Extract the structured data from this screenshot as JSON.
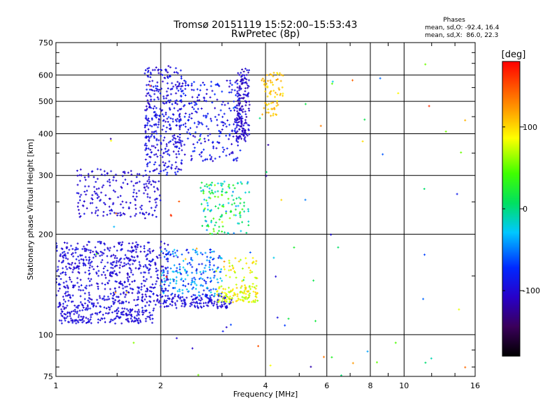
{
  "chart_data": {
    "type": "scatter",
    "title": "Tromsø 20151119 15:52:00–15:53:43",
    "subtitle": "RwPretec (8p)",
    "xlabel": "Frequency [MHz]",
    "ylabel": "Stationary phase Virtual Height [km]",
    "x_scale": "log",
    "y_scale": "log",
    "xlim": [
      1,
      16
    ],
    "ylim": [
      75,
      750
    ],
    "x_ticks": [
      1,
      2,
      4,
      6,
      8,
      10,
      16
    ],
    "y_ticks": [
      75,
      100,
      200,
      300,
      400,
      500,
      600,
      750
    ],
    "grid": true,
    "phases_box": {
      "title": "Phases",
      "line_o": "mean, sd,O: -92.4, 16.4",
      "line_x": "mean, sd,X:  86.0, 22.3"
    },
    "colorbar": {
      "label": "[deg]",
      "ticks": [
        100,
        0,
        -100
      ],
      "range": [
        -180,
        180
      ]
    },
    "clusters": [
      {
        "freq": [
          1.02,
          1.9
        ],
        "height": [
          108,
          118
        ],
        "phase": [
          -105,
          -90
        ],
        "count": 160
      },
      {
        "freq": [
          1.0,
          2.1
        ],
        "height": [
          118,
          190
        ],
        "phase": [
          -110,
          -85
        ],
        "count": 650
      },
      {
        "freq": [
          2.0,
          3.2
        ],
        "height": [
          120,
          132
        ],
        "phase": [
          -105,
          -90
        ],
        "count": 140
      },
      {
        "freq": [
          2.0,
          3.0
        ],
        "height": [
          130,
          180
        ],
        "phase": [
          -90,
          -20
        ],
        "count": 200
      },
      {
        "freq": [
          2.9,
          3.8
        ],
        "height": [
          125,
          140
        ],
        "phase": [
          60,
          110
        ],
        "count": 110
      },
      {
        "freq": [
          1.15,
          2.0
        ],
        "height": [
          225,
          315
        ],
        "phase": [
          -110,
          -90
        ],
        "count": 200
      },
      {
        "freq": [
          1.8,
          2.3
        ],
        "height": [
          300,
          640
        ],
        "phase": [
          -110,
          -80
        ],
        "count": 340
      },
      {
        "freq": [
          2.2,
          3.4
        ],
        "height": [
          330,
          580
        ],
        "phase": [
          -110,
          -70
        ],
        "count": 260
      },
      {
        "freq": [
          3.3,
          3.6
        ],
        "height": [
          380,
          630
        ],
        "phase": [
          -120,
          -90
        ],
        "count": 170
      },
      {
        "freq": [
          2.6,
          3.6
        ],
        "height": [
          200,
          290
        ],
        "phase": [
          -50,
          60
        ],
        "count": 140
      },
      {
        "freq": [
          3.9,
          4.5
        ],
        "height": [
          450,
          610
        ],
        "phase": [
          90,
          120
        ],
        "count": 70
      },
      {
        "freq": [
          3.0,
          3.8
        ],
        "height": [
          140,
          170
        ],
        "phase": [
          60,
          110
        ],
        "count": 40
      },
      {
        "freq": [
          1.3,
          15.0
        ],
        "height": [
          75,
          650
        ],
        "phase": [
          -120,
          170
        ],
        "count": 80
      }
    ]
  }
}
